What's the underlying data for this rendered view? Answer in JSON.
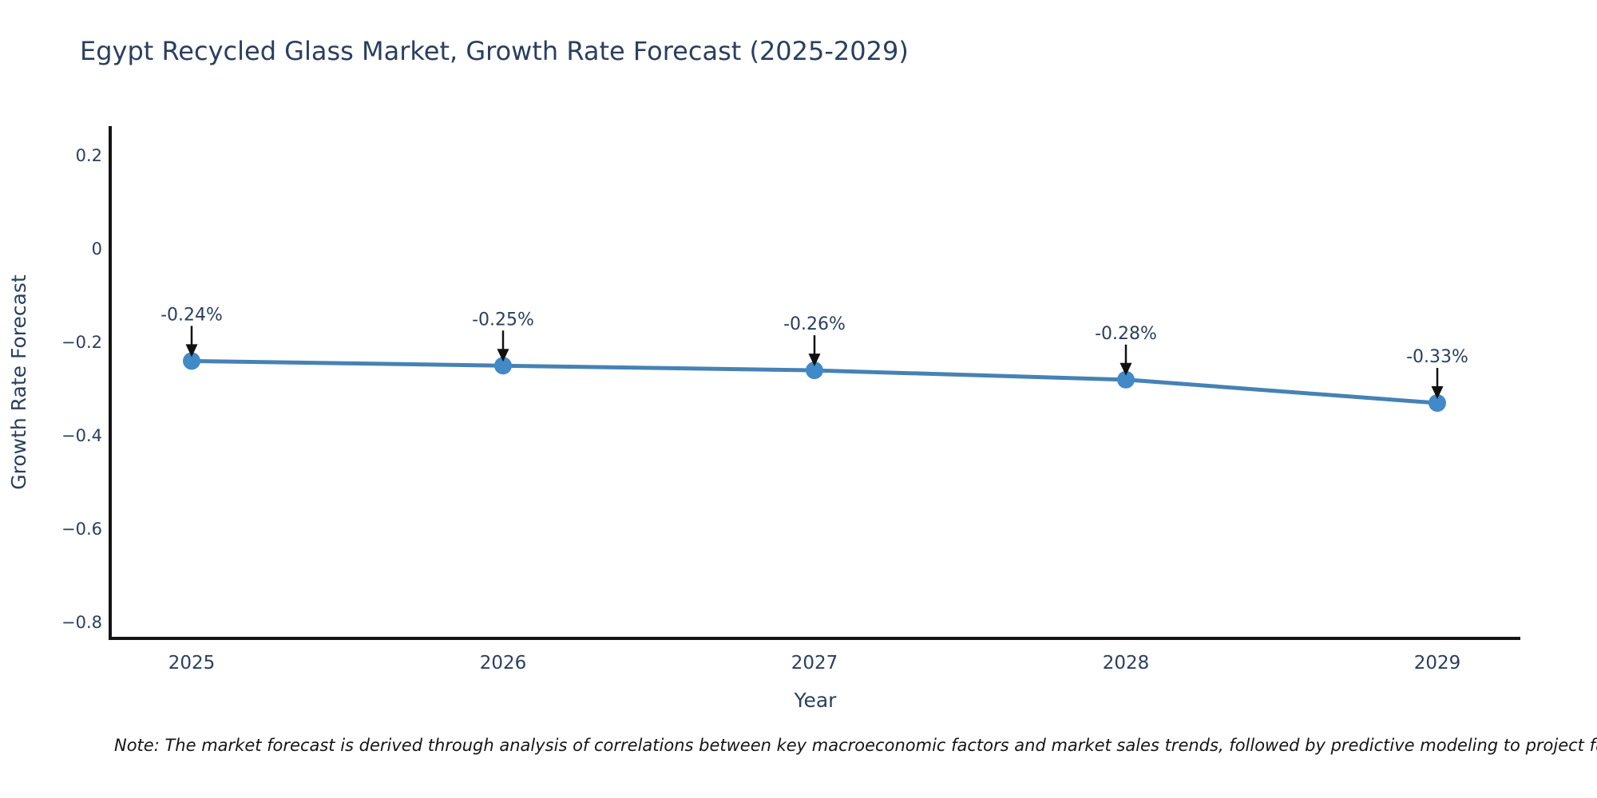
{
  "chart_data": {
    "type": "line",
    "title": "Egypt Recycled Glass Market, Growth Rate Forecast (2025-2029)",
    "xlabel": "Year",
    "ylabel": "Growth Rate Forecast",
    "categories": [
      "2025",
      "2026",
      "2027",
      "2028",
      "2029"
    ],
    "series": [
      {
        "name": "Growth Rate Forecast",
        "values": [
          -0.24,
          -0.25,
          -0.26,
          -0.28,
          -0.33
        ]
      }
    ],
    "point_labels": [
      "-0.24%",
      "-0.25%",
      "-0.26%",
      "-0.28%",
      "-0.33%"
    ],
    "ytick_values": [
      0.2,
      0,
      -0.2,
      -0.4,
      -0.6,
      -0.8
    ],
    "ytick_labels": [
      "0.2",
      "0",
      "−0.2",
      "−0.4",
      "−0.6",
      "−0.8"
    ],
    "ylim": [
      -0.836,
      0.263
    ],
    "grid": false,
    "legend": "none",
    "colors": {
      "line": "#4682b4",
      "marker": "#4289c8",
      "axis": "#151515",
      "text": "#2a3f5f",
      "annotation_arrow": "#111111"
    }
  },
  "footnote": {
    "text": "Note: The market forecast is derived through analysis of correlations between key macroeconomic factors and market sales trends, followed by predictive modeling to project future sa"
  }
}
